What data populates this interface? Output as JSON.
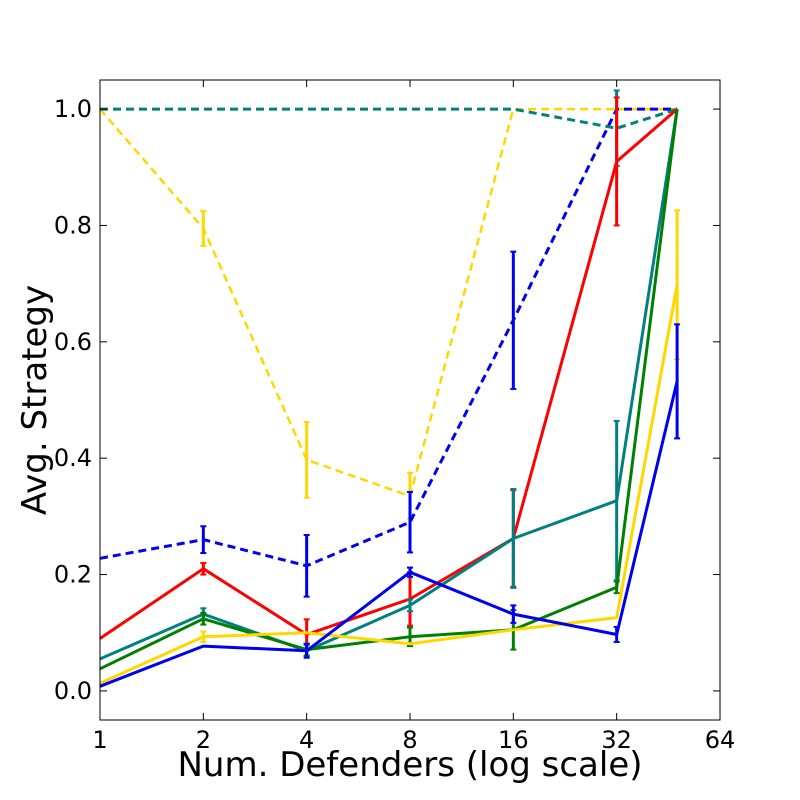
{
  "chart_data": {
    "type": "line",
    "title": "",
    "xlabel": "Num. Defenders (log scale)",
    "ylabel": "Avg. Strategy",
    "x_scale": "log2",
    "xlim": [
      1,
      64
    ],
    "ylim": [
      -0.05,
      1.05
    ],
    "x_ticks": [
      1,
      2,
      4,
      8,
      16,
      32,
      64
    ],
    "x_tick_labels": [
      "1",
      "2",
      "4",
      "8",
      "16",
      "32",
      "64"
    ],
    "y_ticks": [
      0.0,
      0.2,
      0.4,
      0.6,
      0.8,
      1.0
    ],
    "y_tick_labels": [
      "0.0",
      "0.2",
      "0.4",
      "0.6",
      "0.8",
      "1.0"
    ],
    "grid": false,
    "legend": "none",
    "series": [
      {
        "name": "yellow-dashed",
        "color": "#FFD700",
        "dashed": true,
        "width": 2.5,
        "x": [
          1,
          2,
          4,
          8,
          16,
          32,
          48
        ],
        "y": [
          1.0,
          0.795,
          0.397,
          0.335,
          1.0,
          1.0,
          1.0
        ],
        "err": [
          0,
          0.03,
          0.065,
          0.04,
          0,
          0,
          0
        ]
      },
      {
        "name": "blue-dashed",
        "color": "#0000EE",
        "dashed": true,
        "width": 3,
        "x": [
          1,
          2,
          4,
          8,
          16,
          32,
          48
        ],
        "y": [
          0.228,
          0.26,
          0.215,
          0.29,
          0.637,
          1.0,
          1.0
        ],
        "err": [
          0,
          0.023,
          0.053,
          0.052,
          0.118,
          0,
          0
        ]
      },
      {
        "name": "teal-dashed",
        "color": "#008080",
        "dashed": true,
        "width": 3,
        "x": [
          1,
          2,
          4,
          8,
          16,
          32,
          48
        ],
        "y": [
          1.0,
          1.0,
          1.0,
          1.0,
          1.0,
          0.967,
          1.0
        ],
        "err": [
          0,
          0,
          0,
          0,
          0,
          0.065,
          0
        ]
      },
      {
        "name": "red",
        "color": "#FF0000",
        "dashed": false,
        "width": 3,
        "x": [
          1,
          2,
          4,
          8,
          16,
          32,
          48
        ],
        "y": [
          0.09,
          0.21,
          0.097,
          0.158,
          0.262,
          0.91,
          1.0
        ],
        "err": [
          0,
          0.01,
          0.026,
          0.046,
          0.083,
          0.11,
          0
        ]
      },
      {
        "name": "teal",
        "color": "#008080",
        "dashed": false,
        "width": 3,
        "x": [
          1,
          2,
          4,
          8,
          16,
          32,
          48
        ],
        "y": [
          0.055,
          0.132,
          0.069,
          0.147,
          0.262,
          0.327,
          1.0
        ],
        "err": [
          0,
          0.01,
          0.01,
          0.01,
          0.085,
          0.137,
          0
        ]
      },
      {
        "name": "green",
        "color": "#008000",
        "dashed": false,
        "width": 3,
        "x": [
          1,
          2,
          4,
          8,
          16,
          32,
          48
        ],
        "y": [
          0.038,
          0.124,
          0.071,
          0.093,
          0.105,
          0.178,
          1.0
        ],
        "err": [
          0,
          0.01,
          0.01,
          0.016,
          0.034,
          0.01,
          0
        ]
      },
      {
        "name": "yellow",
        "color": "#FFD700",
        "dashed": false,
        "width": 3,
        "x": [
          1,
          2,
          4,
          8,
          16,
          32,
          48
        ],
        "y": [
          0.013,
          0.093,
          0.1,
          0.081,
          0.105,
          0.126,
          0.698
        ],
        "err": [
          0,
          0.009,
          0,
          0,
          0,
          0,
          0.128
        ]
      },
      {
        "name": "blue",
        "color": "#0000EE",
        "dashed": false,
        "width": 3,
        "x": [
          1,
          2,
          4,
          8,
          16,
          32,
          48
        ],
        "y": [
          0.008,
          0.077,
          0.069,
          0.204,
          0.132,
          0.097,
          0.532
        ],
        "err": [
          0,
          0,
          0.012,
          0.008,
          0.015,
          0.013,
          0.098
        ]
      }
    ]
  }
}
